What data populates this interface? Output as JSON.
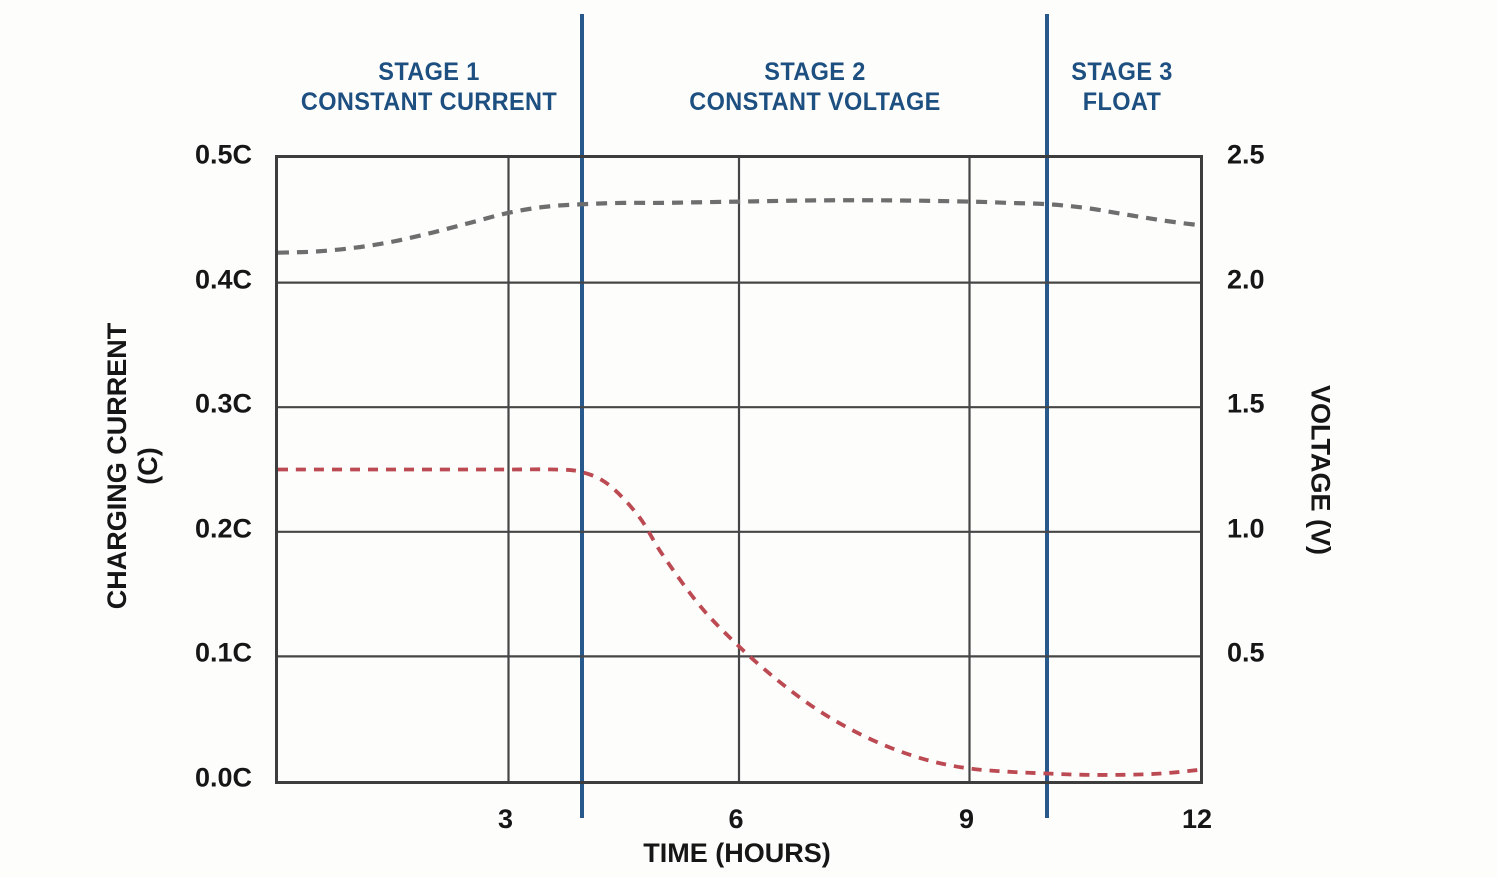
{
  "colors": {
    "background": "#fdfdfc",
    "stage_text": "#1d5080",
    "stage_line": "#27598c",
    "axis_text": "#161616",
    "grid": "#464646",
    "border": "#3d3d3d",
    "voltage_curve": "#6e6e6e",
    "current_curve": "#bc4a52"
  },
  "stages": [
    {
      "line1": "STAGE 1",
      "line2": "CONSTANT CURRENT"
    },
    {
      "line1": "STAGE 2",
      "line2": "CONSTANT VOLTAGE"
    },
    {
      "line1": "STAGE 3",
      "line2": "FLOAT"
    }
  ],
  "chart_data": {
    "type": "line",
    "title": "",
    "xlabel": "TIME (HOURS)",
    "ylabel_left": "CHARGING CURRENT (C)",
    "ylabel_left_line1": "CHARGING CURRENT",
    "ylabel_left_line2": "(C)",
    "ylabel_right": "VOLTAGE (V)",
    "xlim": [
      0,
      12
    ],
    "x_tick_values": [
      3,
      6,
      9,
      12
    ],
    "x_tick_labels": [
      "3",
      "6",
      "9",
      "12"
    ],
    "left_axis": {
      "lim": [
        0,
        0.5
      ],
      "tick_values": [
        0.5,
        0.4,
        0.3,
        0.2,
        0.1,
        0.0
      ],
      "tick_labels": [
        "0.5C",
        "0.4C",
        "0.3C",
        "0.2C",
        "0.1C",
        "0.0C"
      ]
    },
    "right_axis": {
      "lim": [
        0,
        2.5
      ],
      "tick_values": [
        2.5,
        2.0,
        1.5,
        1.0,
        0.5
      ],
      "tick_labels": [
        "2.5",
        "2.0",
        "1.5",
        "1.0",
        "0.5"
      ]
    },
    "grid": true,
    "grid_x_values": [
      3,
      6,
      9
    ],
    "grid_left_values": [
      0.4,
      0.3,
      0.2,
      0.1
    ],
    "stage_boundaries_hours": [
      4.0,
      10.05
    ],
    "legend_position": "none",
    "series": [
      {
        "name": "Voltage",
        "axis": "right",
        "color": "#6e6e6e",
        "line_style": "dashed",
        "points": [
          [
            0,
            2.12
          ],
          [
            0.5,
            2.125
          ],
          [
            1,
            2.14
          ],
          [
            1.5,
            2.165
          ],
          [
            2,
            2.2
          ],
          [
            2.5,
            2.24
          ],
          [
            3,
            2.28
          ],
          [
            3.5,
            2.305
          ],
          [
            4,
            2.315
          ],
          [
            4.5,
            2.32
          ],
          [
            5,
            2.32
          ],
          [
            6,
            2.325
          ],
          [
            7,
            2.33
          ],
          [
            8,
            2.33
          ],
          [
            9,
            2.325
          ],
          [
            9.5,
            2.32
          ],
          [
            10,
            2.315
          ],
          [
            10.5,
            2.3
          ],
          [
            11,
            2.275
          ],
          [
            11.5,
            2.25
          ],
          [
            12,
            2.23
          ]
        ]
      },
      {
        "name": "Charging current",
        "axis": "left",
        "color": "#bc4a52",
        "line_style": "dashed",
        "points": [
          [
            0,
            0.25
          ],
          [
            1,
            0.25
          ],
          [
            2,
            0.25
          ],
          [
            3,
            0.25
          ],
          [
            3.6,
            0.25
          ],
          [
            3.95,
            0.248
          ],
          [
            4.3,
            0.238
          ],
          [
            4.7,
            0.212
          ],
          [
            5,
            0.182
          ],
          [
            5.5,
            0.14
          ],
          [
            6,
            0.108
          ],
          [
            6.5,
            0.081
          ],
          [
            7,
            0.058
          ],
          [
            7.5,
            0.04
          ],
          [
            8,
            0.026
          ],
          [
            8.5,
            0.016
          ],
          [
            9,
            0.01
          ],
          [
            9.5,
            0.0075
          ],
          [
            10,
            0.006
          ],
          [
            10.5,
            0.005
          ],
          [
            11,
            0.005
          ],
          [
            11.5,
            0.006
          ],
          [
            12,
            0.009
          ]
        ]
      }
    ]
  }
}
